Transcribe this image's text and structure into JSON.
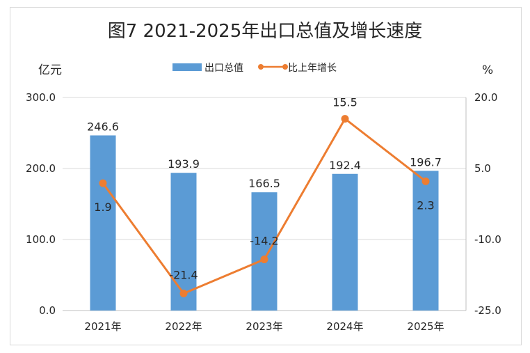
{
  "chart_data": {
    "type": "bar",
    "title": "图7  2021-2025年出口总值及增长速度",
    "categories": [
      "2021年",
      "2022年",
      "2023年",
      "2024年",
      "2025年"
    ],
    "series": [
      {
        "name": "出口总值",
        "kind": "bar",
        "axis": "left",
        "color": "#5b9bd5",
        "values": [
          246.6,
          193.9,
          166.5,
          192.4,
          196.7
        ],
        "labels": [
          "246.6",
          "193.9",
          "166.5",
          "192.4",
          "196.7"
        ]
      },
      {
        "name": "比上年增长",
        "kind": "line",
        "axis": "right",
        "color": "#ed7d31",
        "values": [
          1.9,
          -21.4,
          -14.2,
          15.5,
          2.3
        ],
        "labels": [
          "1.9",
          "-21.4",
          "-14.2",
          "15.5",
          "2.3"
        ]
      }
    ],
    "left_axis": {
      "unit": "亿元",
      "range": [
        0,
        300
      ],
      "ticks": [
        0,
        100,
        200,
        300
      ],
      "tick_labels": [
        "0.0",
        "100.0",
        "200.0",
        "300.0"
      ]
    },
    "right_axis": {
      "unit": "%",
      "range": [
        -25,
        20
      ],
      "ticks": [
        -25,
        -10,
        5,
        20
      ],
      "tick_labels": [
        "-25.0",
        "-10.0",
        "5.0",
        "20.0"
      ]
    },
    "grid": true,
    "legend_position": "top"
  }
}
